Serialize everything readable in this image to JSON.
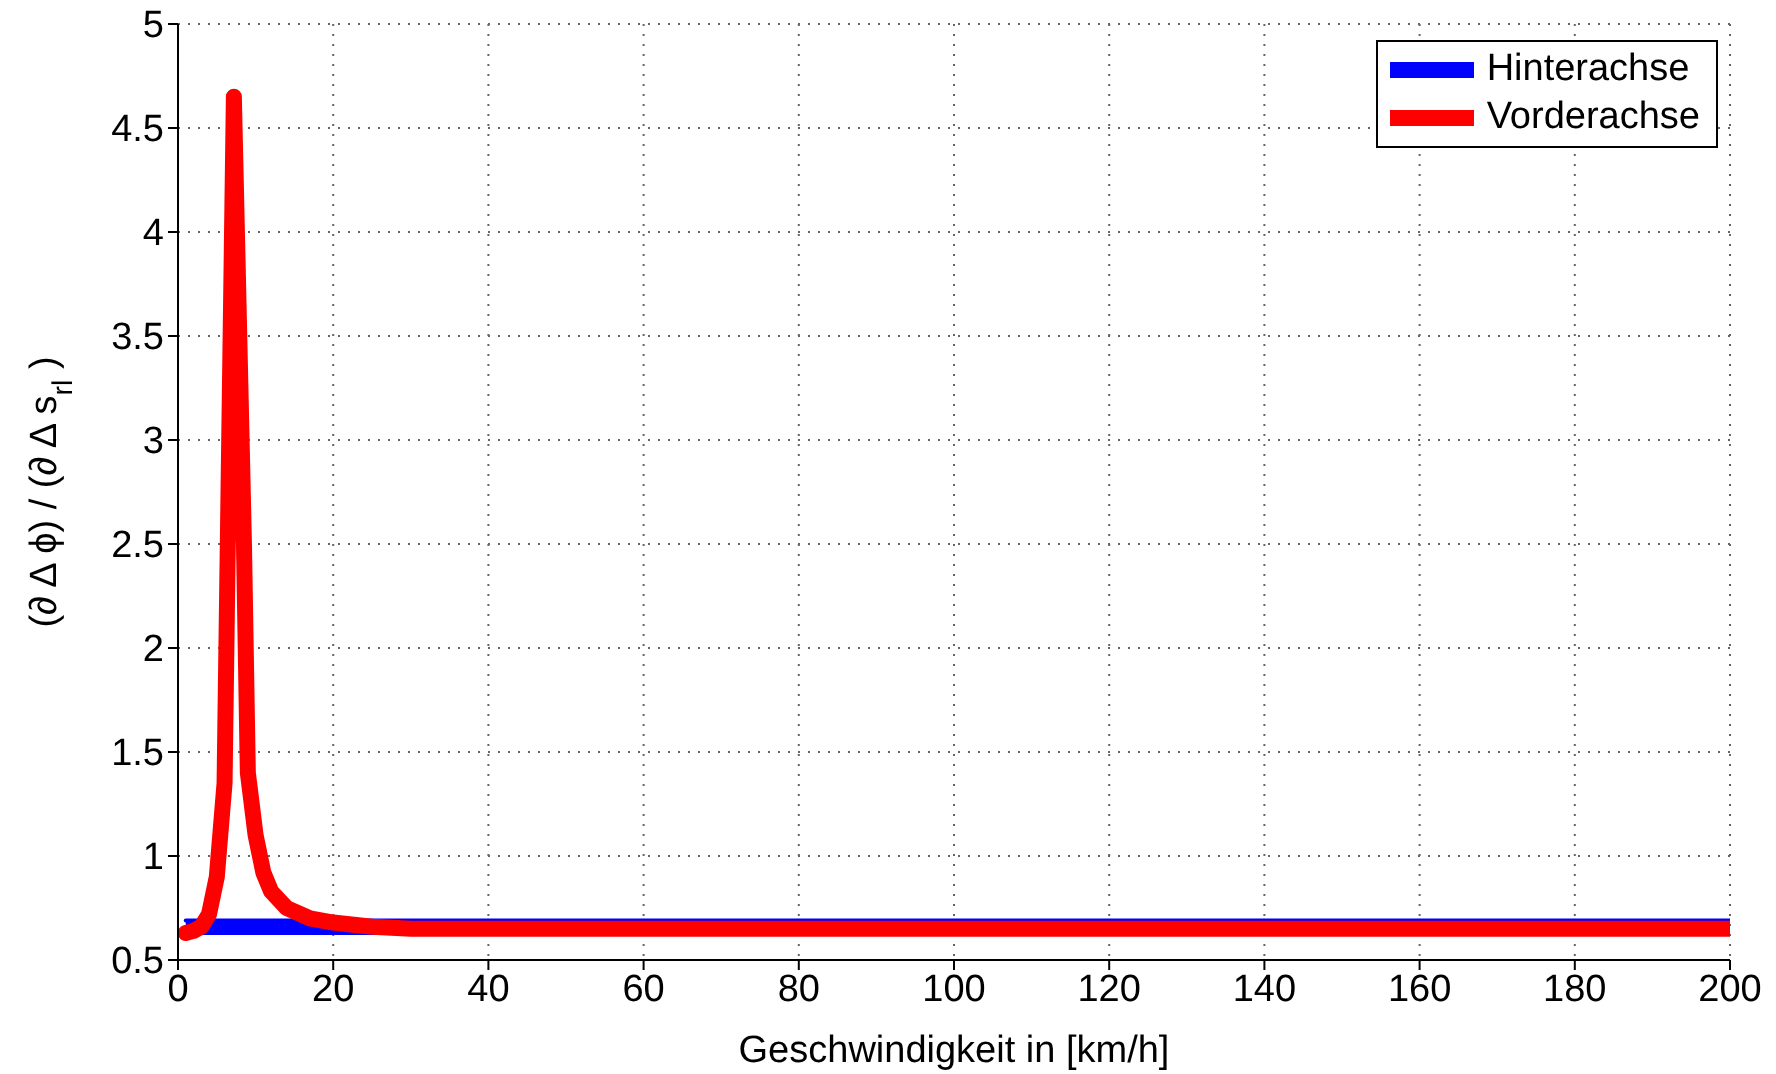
{
  "chart_data": {
    "type": "line",
    "xlabel": "Geschwindigkeit in [km/h]",
    "ylabel": "(∂ Δ ϕ) / (∂ Δ s$_{rl}$)",
    "xlim": [
      0,
      200
    ],
    "xticks": [
      0,
      20,
      40,
      60,
      80,
      100,
      120,
      140,
      160,
      180,
      200
    ],
    "ylim": [
      0.5,
      5
    ],
    "yticks": [
      0.5,
      1,
      1.5,
      2,
      2.5,
      3,
      3.5,
      4,
      4.5,
      5
    ],
    "grid": true,
    "legend": "top right",
    "marker": "none",
    "line_style": "solid",
    "series": [
      {
        "name": "Hinterachse",
        "color": "#0000ff",
        "x": [
          1,
          200
        ],
        "values": [
          0.69,
          0.69
        ],
        "lower": [
          0.62,
          0.62
        ],
        "upper": [
          0.69,
          0.69
        ]
      },
      {
        "name": "Vorderachse",
        "color": "#ff0000",
        "x": [
          1,
          2,
          3,
          4,
          5,
          6,
          7.2,
          8.5,
          9,
          10,
          11,
          12,
          14,
          17,
          20,
          25,
          30,
          40,
          200
        ],
        "values": [
          0.63,
          0.64,
          0.66,
          0.72,
          0.9,
          1.35,
          4.65,
          2.5,
          1.4,
          1.1,
          0.92,
          0.83,
          0.75,
          0.7,
          0.68,
          0.66,
          0.65,
          0.65,
          0.65
        ]
      }
    ]
  }
}
